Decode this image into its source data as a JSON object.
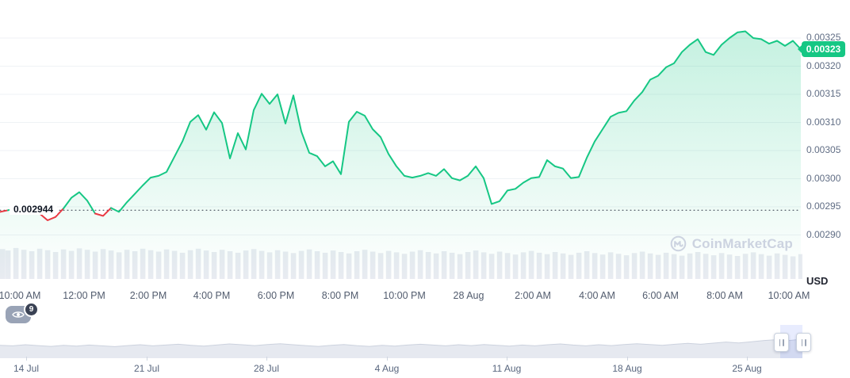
{
  "watermark": {
    "text": "CoinMarketCap"
  },
  "watchers": {
    "count": "9"
  },
  "chart_data": {
    "type": "area",
    "title": "",
    "unit_label": "USD",
    "current_price_label": "0.00323",
    "reference_price_label": "0.002944",
    "reference_price": 0.002944,
    "ylim": [
      0.00288,
      0.00328
    ],
    "y_ticks": [
      "0.00325",
      "0.00320",
      "0.00315",
      "0.00310",
      "0.00305",
      "0.00300",
      "0.00295",
      "0.00290"
    ],
    "x_ticks": [
      "10:00 AM",
      "12:00 PM",
      "2:00 PM",
      "4:00 PM",
      "6:00 PM",
      "8:00 PM",
      "10:00 PM",
      "28 Aug",
      "2:00 AM",
      "4:00 AM",
      "6:00 AM",
      "8:00 AM",
      "10:00 AM"
    ],
    "series": [
      {
        "name": "Price (USD)",
        "values": [
          0.002941,
          0.002944,
          0.002947,
          0.002941,
          0.002944,
          0.002938,
          0.002926,
          0.002932,
          0.002947,
          0.002966,
          0.002976,
          0.002961,
          0.002938,
          0.002934,
          0.002948,
          0.002941,
          0.002958,
          0.002973,
          0.002988,
          0.003002,
          0.003005,
          0.003012,
          0.003039,
          0.003066,
          0.003101,
          0.003113,
          0.003087,
          0.003118,
          0.003099,
          0.003036,
          0.003081,
          0.003052,
          0.003122,
          0.003151,
          0.003133,
          0.00315,
          0.003098,
          0.003148,
          0.003084,
          0.003046,
          0.00304,
          0.003022,
          0.003031,
          0.003008,
          0.003101,
          0.003119,
          0.003112,
          0.003088,
          0.003074,
          0.003044,
          0.003022,
          0.003005,
          0.003002,
          0.003005,
          0.00301,
          0.003005,
          0.003017,
          0.003001,
          0.002997,
          0.003005,
          0.003022,
          0.003001,
          0.002955,
          0.00296,
          0.002979,
          0.002982,
          0.002993,
          0.003001,
          0.003003,
          0.003033,
          0.003022,
          0.003018,
          0.003001,
          0.003003,
          0.003037,
          0.003066,
          0.003088,
          0.00311,
          0.003117,
          0.00312,
          0.003139,
          0.003154,
          0.003176,
          0.003183,
          0.003198,
          0.003205,
          0.003225,
          0.003238,
          0.003248,
          0.003225,
          0.00322,
          0.003238,
          0.00325,
          0.00326,
          0.003262,
          0.00325,
          0.003248,
          0.00324,
          0.003245,
          0.003236,
          0.003245,
          0.00323
        ]
      }
    ],
    "volume": [
      0.82,
      0.78,
      0.85,
      0.8,
      0.76,
      0.83,
      0.79,
      0.74,
      0.81,
      0.77,
      0.84,
      0.8,
      0.75,
      0.82,
      0.78,
      0.73,
      0.8,
      0.76,
      0.83,
      0.79,
      0.75,
      0.81,
      0.77,
      0.72,
      0.79,
      0.83,
      0.78,
      0.74,
      0.8,
      0.76,
      0.72,
      0.78,
      0.82,
      0.77,
      0.73,
      0.79,
      0.75,
      0.71,
      0.77,
      0.81,
      0.76,
      0.72,
      0.78,
      0.74,
      0.7,
      0.76,
      0.8,
      0.75,
      0.71,
      0.77,
      0.73,
      0.69,
      0.75,
      0.79,
      0.74,
      0.7,
      0.76,
      0.72,
      0.68,
      0.74,
      0.78,
      0.73,
      0.69,
      0.75,
      0.71,
      0.67,
      0.73,
      0.77,
      0.72,
      0.68,
      0.74,
      0.7,
      0.66,
      0.72,
      0.76,
      0.71,
      0.67,
      0.73,
      0.69,
      0.65,
      0.71,
      0.75,
      0.7,
      0.66,
      0.72,
      0.68,
      0.64,
      0.7,
      0.74,
      0.69,
      0.65,
      0.71,
      0.67,
      0.63,
      0.69,
      0.73,
      0.68,
      0.64,
      0.7,
      0.66,
      0.62,
      0.68
    ],
    "colors": {
      "up": "#16c784",
      "down": "#ea3943",
      "grid": "#eff2f5",
      "volume": "#e8ebf1",
      "brush_fill": "#e6e9f0",
      "brush_line": "#ccd2de"
    },
    "brush": {
      "x_ticks": [
        "14 Jul",
        "21 Jul",
        "28 Jul",
        "4 Aug",
        "11 Aug",
        "18 Aug",
        "25 Aug"
      ],
      "values": [
        0.42,
        0.4,
        0.44,
        0.41,
        0.38,
        0.42,
        0.39,
        0.43,
        0.4,
        0.37,
        0.41,
        0.44,
        0.4,
        0.43,
        0.46,
        0.42,
        0.39,
        0.43,
        0.47,
        0.44,
        0.41,
        0.45,
        0.48,
        0.44,
        0.41,
        0.38,
        0.42,
        0.45,
        0.41,
        0.38,
        0.42,
        0.39,
        0.43,
        0.46,
        0.43,
        0.4,
        0.44,
        0.41,
        0.45,
        0.42,
        0.39,
        0.43,
        0.4,
        0.44,
        0.47,
        0.43,
        0.4,
        0.44,
        0.41,
        0.45,
        0.48,
        0.45,
        0.42,
        0.46,
        0.49,
        0.46,
        0.5,
        0.54,
        0.51,
        0.55,
        0.6,
        0.63,
        0.6,
        0.65
      ]
    }
  }
}
